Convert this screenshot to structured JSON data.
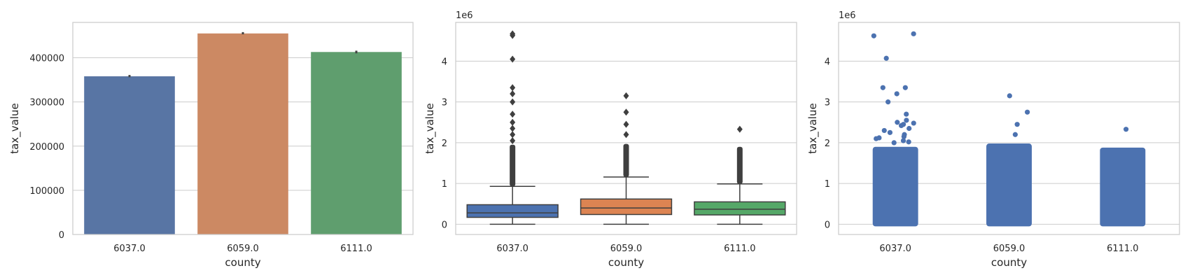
{
  "chart_data": [
    {
      "type": "bar",
      "xlabel": "county",
      "ylabel": "tax_value",
      "categories": [
        "6037.0",
        "6059.0",
        "6111.0"
      ],
      "values": [
        358000,
        455000,
        413000
      ],
      "error_ci": [
        [
          356000,
          361000
        ],
        [
          453000,
          458000
        ],
        [
          410000,
          416000
        ]
      ],
      "colors": [
        "#5875a4",
        "#cc8963",
        "#5f9e6e"
      ],
      "ylim": [
        0,
        480000
      ],
      "yticks": [
        0,
        100000,
        200000,
        300000,
        400000
      ],
      "ytick_labels": [
        "0",
        "100000",
        "200000",
        "300000",
        "400000"
      ],
      "grid": true
    },
    {
      "type": "box",
      "xlabel": "county",
      "ylabel": "tax_value",
      "y_offset_label": "1e6",
      "categories": [
        "6037.0",
        "6059.0",
        "6111.0"
      ],
      "colors": [
        "#4c72b0",
        "#dd8452",
        "#55a868"
      ],
      "ylim": [
        -0.25,
        4.95
      ],
      "yticks": [
        0,
        1,
        2,
        3,
        4
      ],
      "ytick_labels": [
        "0",
        "1",
        "2",
        "3",
        "4"
      ],
      "grid": true,
      "boxes": [
        {
          "min": 0.0,
          "q1": 0.17,
          "median": 0.28,
          "q3": 0.48,
          "whisker_high": 0.93,
          "outlier_dense_to": 1.95,
          "outliers": [
            2.05,
            2.2,
            2.35,
            2.5,
            2.7,
            3.0,
            3.2,
            3.35,
            4.05,
            4.63,
            4.67
          ]
        },
        {
          "min": 0.0,
          "q1": 0.24,
          "median": 0.4,
          "q3": 0.62,
          "whisker_high": 1.16,
          "outlier_dense_to": 1.97,
          "outliers": [
            2.2,
            2.45,
            2.75,
            3.15
          ]
        },
        {
          "min": 0.0,
          "q1": 0.23,
          "median": 0.37,
          "q3": 0.55,
          "whisker_high": 0.99,
          "outlier_dense_to": 1.9,
          "outliers": [
            2.33
          ]
        }
      ]
    },
    {
      "type": "scatter",
      "subtype": "strip",
      "xlabel": "county",
      "ylabel": "tax_value",
      "y_offset_label": "1e6",
      "categories": [
        "6037.0",
        "6059.0",
        "6111.0"
      ],
      "color": "#4c72b0",
      "ylim": [
        -0.25,
        4.95
      ],
      "yticks": [
        0,
        1,
        2,
        3,
        4
      ],
      "ytick_labels": [
        "0",
        "1",
        "2",
        "3",
        "4"
      ],
      "grid": true,
      "strips": [
        {
          "dense_to": 1.9,
          "points": [
            4.62,
            4.67,
            4.07,
            3.35,
            3.35,
            3.2,
            3.0,
            2.7,
            2.55,
            2.5,
            2.45,
            2.42,
            2.35,
            2.3,
            2.25,
            2.2,
            2.15,
            2.1,
            2.05,
            2.0,
            2.48,
            2.02,
            2.12
          ]
        },
        {
          "dense_to": 1.98,
          "points": [
            3.15,
            2.75,
            2.45,
            2.2
          ]
        },
        {
          "dense_to": 1.88,
          "points": [
            2.33
          ]
        }
      ]
    }
  ]
}
